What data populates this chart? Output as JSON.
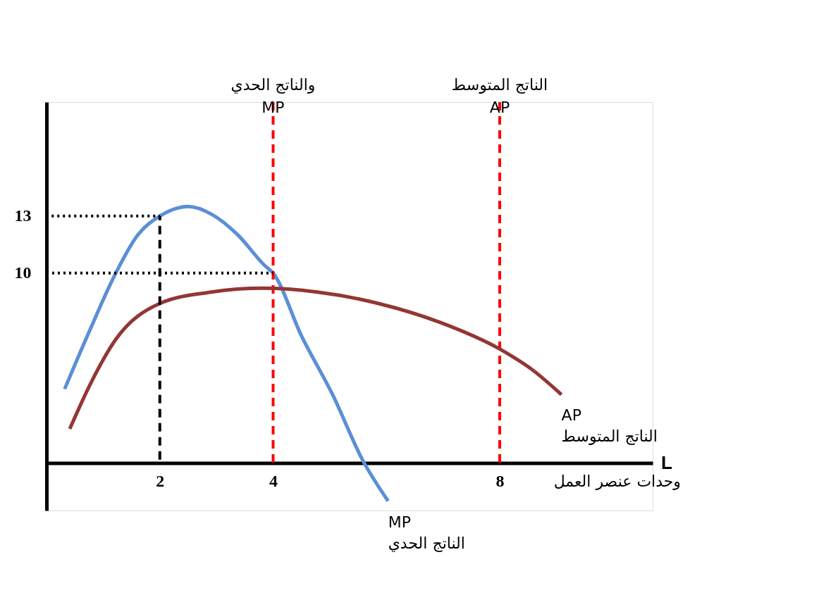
{
  "chart_data": {
    "type": "line",
    "xlabel": "L",
    "annotations": [
      "وحدات عنصر العمل"
    ],
    "xlim": [
      0,
      10.7
    ],
    "ylim": [
      -2.5,
      19
    ],
    "xticks": [
      2,
      4,
      8
    ],
    "yticks": [
      10,
      13
    ],
    "grid": false,
    "marker": "none",
    "series": [
      {
        "name": "MP\nالناتج الحدي",
        "color": "#5b8fd6",
        "line_style": "solid",
        "x": [
          0.32,
          0.78,
          1.19,
          1.61,
          2,
          2.5,
          2.91,
          3.38,
          3.85,
          4,
          4.5,
          5.05,
          5.59,
          6.03
        ],
        "values": [
          3.9,
          7.1,
          9.8,
          12.0,
          13,
          13.5,
          13.1,
          12.0,
          10.4,
          10,
          6.7,
          3.6,
          0.1,
          -2.0
        ]
      },
      {
        "name": "AP\nالناتج المتوسط",
        "color": "#943634",
        "line_style": "solid",
        "x": [
          0.41,
          0.78,
          1.22,
          2,
          2.91,
          3.82,
          4.78,
          5.86,
          6.95,
          8,
          8.58,
          9.09
        ],
        "values": [
          1.8,
          4.2,
          6.5,
          8.4,
          9.0,
          9.2,
          9.0,
          8.4,
          7.4,
          6.0,
          4.9,
          3.6
        ]
      },
      {
        "color": "#000000",
        "line_style": "dotted",
        "x": [
          0,
          2
        ],
        "values": [
          13,
          13
        ]
      },
      {
        "color": "#000000",
        "line_style": "dotted",
        "x": [
          0,
          4
        ],
        "values": [
          10,
          10
        ]
      },
      {
        "color": "#000000",
        "line_style": "dashed",
        "x": [
          2,
          2
        ],
        "values": [
          0,
          13
        ]
      }
    ],
    "ref_lines": [
      {
        "axis": "x",
        "value": 4,
        "label": "والناتج الحدي\nMP",
        "color": "#ff0000",
        "line_style": "dashed"
      },
      {
        "axis": "x",
        "value": 8,
        "label": "الناتج المتوسط\nAP",
        "color": "#ff0000",
        "line_style": "dashed"
      }
    ]
  }
}
